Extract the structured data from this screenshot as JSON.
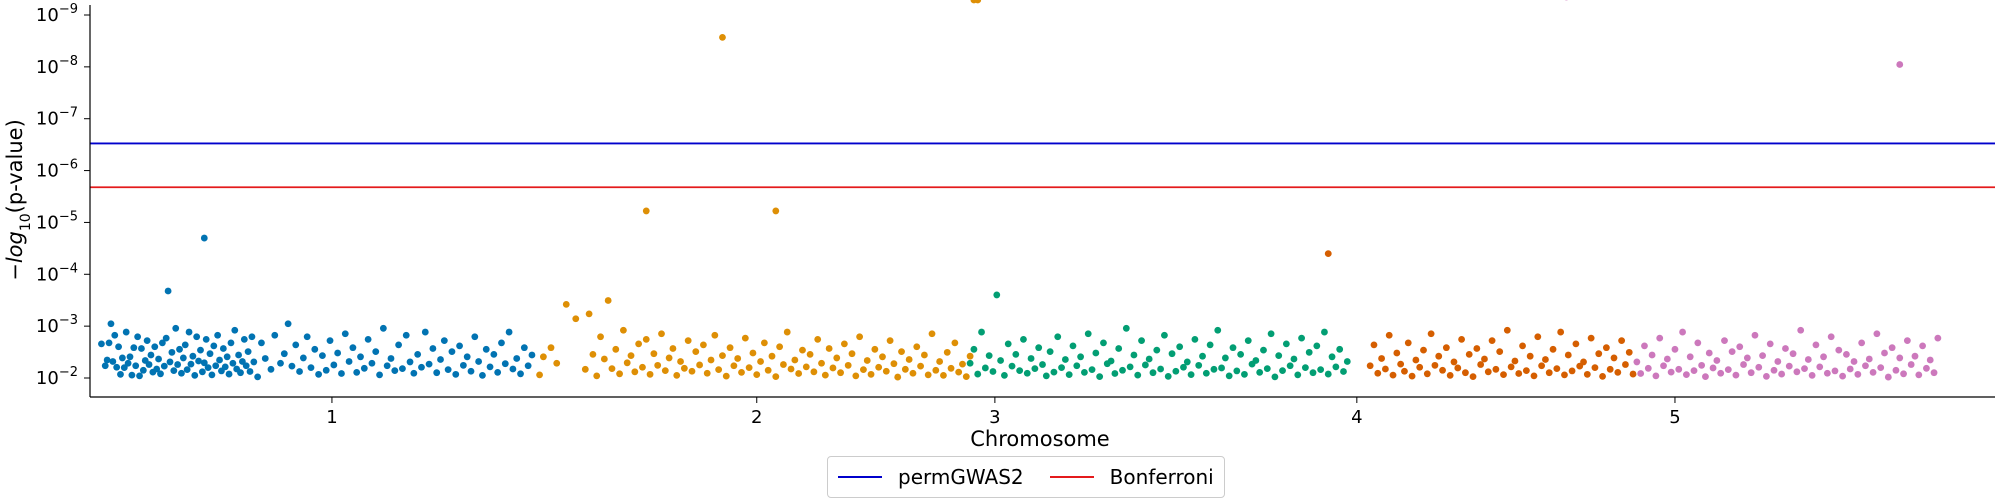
{
  "chart_data": {
    "type": "scatter",
    "xlabel": "Chromosome",
    "ylabel": "−log10(p-value)",
    "xticks": [
      "1",
      "2",
      "3",
      "4",
      "5"
    ],
    "yscale": "log",
    "ytick_labels": [
      {
        "base": "10",
        "exp": "−9",
        "value": 1e-09
      },
      {
        "base": "10",
        "exp": "−8",
        "value": 1e-08
      },
      {
        "base": "10",
        "exp": "−7",
        "value": 1e-07
      },
      {
        "base": "10",
        "exp": "−6",
        "value": 1e-06
      },
      {
        "base": "10",
        "exp": "−5",
        "value": 1e-05
      },
      {
        "base": "10",
        "exp": "−4",
        "value": 0.0001
      },
      {
        "base": "10",
        "exp": "−3",
        "value": 0.001
      },
      {
        "base": "10",
        "exp": "−2",
        "value": 0.01
      }
    ],
    "thresholds": [
      {
        "name": "permGWAS2",
        "value": 3e-07,
        "color": "#0000cc"
      },
      {
        "name": "Bonferroni",
        "value": 2.1e-06,
        "color": "#e41a1c"
      }
    ],
    "legend": {
      "placement": "below",
      "entries": [
        "permGWAS2",
        "Bonferroni"
      ]
    },
    "series": [
      {
        "chromosome": "1",
        "color": "#0173b2",
        "x": [
          0.06,
          0.08,
          0.09,
          0.1,
          0.11,
          0.12,
          0.13,
          0.14,
          0.15,
          0.16,
          0.17,
          0.18,
          0.19,
          0.2,
          0.21,
          0.22,
          0.23,
          0.24,
          0.25,
          0.26,
          0.27,
          0.28,
          0.29,
          0.3,
          0.31,
          0.32,
          0.33,
          0.34,
          0.35,
          0.36,
          0.37,
          0.38,
          0.39,
          0.4,
          0.41,
          0.42,
          0.43,
          0.44,
          0.45,
          0.46,
          0.47,
          0.48,
          0.49,
          0.5,
          0.51,
          0.52,
          0.53,
          0.54,
          0.55,
          0.56,
          0.57,
          0.58,
          0.59,
          0.6,
          0.61,
          0.62,
          0.63,
          0.64,
          0.65,
          0.66,
          0.67,
          0.68,
          0.69,
          0.7,
          0.71,
          0.72,
          0.73,
          0.74,
          0.75,
          0.76,
          0.77,
          0.78,
          0.79,
          0.8,
          0.81,
          0.82,
          0.83,
          0.84,
          0.85,
          0.86,
          0.88,
          0.9,
          0.92,
          0.95,
          0.97,
          1.0,
          1.02,
          1.04,
          1.06,
          1.08,
          1.1,
          1.12,
          1.14,
          1.16,
          1.18,
          1.2,
          1.22,
          1.24,
          1.26,
          1.28,
          1.3,
          1.32,
          1.34,
          1.36,
          1.38,
          1.4,
          1.42,
          1.44,
          1.46,
          1.48,
          1.5,
          1.52,
          1.54,
          1.56,
          1.58,
          1.6,
          1.62,
          1.64,
          1.66,
          1.68,
          1.7,
          1.72,
          1.74,
          1.76,
          1.78,
          1.8,
          1.82,
          1.84,
          1.86,
          1.88,
          1.9,
          1.92,
          1.94,
          1.96,
          1.98,
          2.0,
          2.02,
          2.04,
          2.06,
          2.08,
          2.1,
          2.12,
          2.14,
          2.16,
          2.18,
          2.2,
          2.22,
          2.24,
          2.26,
          2.28,
          2.3,
          2.32
        ],
        "p": [
          0.0022,
          0.0058,
          0.0045,
          0.0021,
          0.0009,
          0.0048,
          0.0015,
          0.0062,
          0.0025,
          0.0085,
          0.0041,
          0.0063,
          0.0013,
          0.0052,
          0.0039,
          0.0088,
          0.0026,
          0.0058,
          0.0016,
          0.0091,
          0.0027,
          0.0071,
          0.0046,
          0.0019,
          0.0055,
          0.0036,
          0.0077,
          0.0025,
          0.0067,
          0.0043,
          0.0083,
          0.0021,
          0.0059,
          0.0017,
          0.00021,
          0.0049,
          0.0032,
          0.0072,
          0.0011,
          0.0055,
          0.0028,
          0.0081,
          0.0041,
          0.0023,
          0.0069,
          0.0013,
          0.0054,
          0.0038,
          0.0089,
          0.0016,
          0.0047,
          0.0029,
          0.0076,
          0.0051,
          0.0018,
          0.0063,
          0.0034,
          0.0087,
          0.0024,
          0.0058,
          0.0015,
          0.0045,
          0.0073,
          0.0027,
          0.0061,
          0.0039,
          0.0084,
          0.0021,
          0.0052,
          0.0012,
          0.0067,
          0.0036,
          0.0079,
          0.0048,
          0.0018,
          0.0058,
          0.0031,
          0.0075,
          0.0016,
          0.0049,
          0.0095,
          0.0021,
          0.0042,
          0.0068,
          0.0015,
          0.0052,
          0.0034,
          0.0009,
          0.0059,
          0.0023,
          0.0075,
          0.0041,
          0.0016,
          0.0063,
          0.0028,
          0.0085,
          0.0037,
          0.0071,
          0.0019,
          0.0056,
          0.0033,
          0.0082,
          0.0014,
          0.0048,
          0.0026,
          0.0078,
          0.0039,
          0.0065,
          0.0018,
          0.0052,
          0.0031,
          0.0087,
          0.0011,
          0.0058,
          0.0042,
          0.0072,
          0.0023,
          0.0066,
          0.0015,
          0.0049,
          0.0081,
          0.0035,
          0.0062,
          0.0013,
          0.0054,
          0.0027,
          0.0079,
          0.0044,
          0.0019,
          0.0069,
          0.0031,
          0.0085,
          0.0024,
          0.0057,
          0.0039,
          0.0074,
          0.0016,
          0.0048,
          0.0089,
          0.0028,
          0.0061,
          0.0035,
          0.0078,
          0.0021,
          0.0053,
          0.0013,
          0.0067,
          0.0042,
          0.0083,
          0.0026,
          0.0058,
          0.0036
        ]
      },
      {
        "chromosome": "2",
        "color": "#de8f05",
        "x": [
          2.36,
          2.38,
          2.42,
          2.45,
          2.5,
          2.55,
          2.6,
          2.62,
          2.64,
          2.66,
          2.68,
          2.7,
          2.72,
          2.74,
          2.76,
          2.78,
          2.8,
          2.82,
          2.84,
          2.86,
          2.88,
          2.9,
          2.92,
          2.94,
          2.96,
          2.98,
          3.0,
          3.02,
          3.04,
          3.06,
          3.08,
          3.1,
          3.12,
          3.14,
          3.16,
          3.18,
          3.2,
          3.22,
          3.24,
          3.26,
          3.28,
          3.3,
          3.32,
          3.34,
          3.36,
          3.38,
          3.4,
          3.42,
          3.44,
          3.46,
          3.48,
          3.5,
          3.52,
          3.54,
          3.56,
          3.58,
          3.6,
          3.62,
          3.64,
          3.66,
          3.68,
          3.7,
          3.72,
          3.74,
          3.76,
          3.78,
          3.8,
          3.82,
          3.84,
          3.86,
          3.88,
          3.9,
          3.92,
          3.94,
          3.96,
          3.98,
          4.0,
          4.02,
          4.04,
          4.06,
          4.08,
          4.1,
          4.12,
          4.14,
          4.16,
          4.18,
          4.2,
          4.22,
          4.24,
          4.26,
          4.28,
          4.3,
          4.32,
          4.34,
          4.36,
          4.38,
          4.4,
          4.42,
          4.44,
          4.46,
          4.48,
          4.5,
          4.52,
          4.54,
          4.56,
          4.58,
          4.6,
          4.62,
          4.64,
          4.66
        ],
        "p": [
          0.0087,
          0.0039,
          0.0026,
          0.0052,
          0.00038,
          0.00072,
          0.0068,
          0.00058,
          0.0035,
          0.0091,
          0.0016,
          0.0043,
          0.00032,
          0.0066,
          0.0028,
          0.0083,
          0.0012,
          0.0051,
          0.0037,
          0.0076,
          0.0022,
          0.0062,
          0.0018,
          0.0085,
          0.0034,
          0.0057,
          0.0014,
          0.0072,
          0.0041,
          0.0027,
          0.0089,
          0.0048,
          0.0065,
          0.0019,
          0.0074,
          0.0031,
          0.0056,
          0.0023,
          0.0081,
          0.0045,
          0.0015,
          0.0069,
          0.0037,
          0.0092,
          0.0026,
          0.0058,
          0.0042,
          0.0078,
          0.0017,
          0.0063,
          0.0033,
          0.0086,
          0.0048,
          0.0021,
          0.0071,
          0.0038,
          0.0094,
          0.0025,
          0.0055,
          0.0013,
          0.0067,
          0.0045,
          0.0082,
          0.0029,
          0.0061,
          0.0035,
          0.0076,
          0.0018,
          0.0052,
          0.0088,
          0.0027,
          0.0064,
          0.0041,
          0.0079,
          0.0022,
          0.0057,
          0.0034,
          0.0091,
          0.0016,
          0.0069,
          0.0046,
          0.0085,
          0.0028,
          0.0062,
          0.0039,
          0.0074,
          0.0019,
          0.0053,
          0.0096,
          0.0031,
          0.0068,
          0.0044,
          0.0081,
          0.0025,
          0.0059,
          0.0036,
          0.0087,
          0.0014,
          0.0071,
          0.0048,
          0.0089,
          0.0032,
          0.0065,
          0.0021,
          0.0077,
          0.0054,
          0.0094,
          0.0038
        ]
      },
      {
        "chromosome": "3",
        "color": "#029e73",
        "x": [
          4.62,
          4.64,
          4.66,
          4.68,
          4.7,
          4.72,
          4.74,
          4.76,
          4.78,
          4.8,
          4.82,
          4.84,
          4.86,
          4.88,
          4.9,
          4.92,
          4.94,
          4.96,
          4.98,
          5.0,
          5.02,
          5.04,
          5.06,
          5.08,
          5.1,
          5.12,
          5.14,
          5.16,
          5.18,
          5.2,
          5.22,
          5.24,
          5.26,
          5.28,
          5.3,
          5.32,
          5.34,
          5.36,
          5.38,
          5.4,
          5.42,
          5.44,
          5.46,
          5.48,
          5.5,
          5.52,
          5.54,
          5.56,
          5.58,
          5.6,
          5.62,
          5.64,
          5.66,
          5.68,
          5.7,
          5.72,
          5.74,
          5.76,
          5.78,
          5.8,
          5.82,
          5.84,
          5.86,
          5.88,
          5.9,
          5.92,
          5.94,
          5.96,
          5.98,
          6.0,
          6.02,
          6.04,
          6.06,
          6.08,
          6.1,
          6.12,
          6.14,
          6.16,
          6.18,
          6.2,
          6.22,
          6.24,
          6.26,
          6.28,
          6.3,
          6.32,
          6.34,
          6.36,
          6.38,
          6.4,
          6.42,
          6.44,
          6.46,
          6.48,
          6.5,
          6.52,
          6.54,
          6.56,
          6.58,
          6.6
        ],
        "p": [
          0.0052,
          0.0028,
          0.0084,
          0.0013,
          0.0064,
          0.0037,
          0.0075,
          0.00025,
          0.0046,
          0.0089,
          0.0022,
          0.0059,
          0.0035,
          0.0072,
          0.0018,
          0.0081,
          0.0042,
          0.0066,
          0.0026,
          0.0055,
          0.0091,
          0.0031,
          0.0077,
          0.0016,
          0.0063,
          0.0044,
          0.0086,
          0.0024,
          0.0058,
          0.0039,
          0.0078,
          0.0014,
          0.0069,
          0.0033,
          0.0094,
          0.0021,
          0.0053,
          0.0047,
          0.0082,
          0.0027,
          0.0071,
          0.0011,
          0.0061,
          0.0036,
          0.0088,
          0.0019,
          0.0056,
          0.0043,
          0.0079,
          0.0029,
          0.0067,
          0.0015,
          0.0093,
          0.0034,
          0.0074,
          0.0025,
          0.0062,
          0.0049,
          0.0086,
          0.0018,
          0.0057,
          0.0038,
          0.0081,
          0.0023,
          0.0068,
          0.0012,
          0.0064,
          0.0041,
          0.0091,
          0.0026,
          0.0073,
          0.0035,
          0.0085,
          0.0019,
          0.0054,
          0.0046,
          0.0078,
          0.0029,
          0.0066,
          0.0014,
          0.0095,
          0.0037,
          0.0072,
          0.0022,
          0.0058,
          0.0043,
          0.0087,
          0.0017,
          0.0063,
          0.0032,
          0.0079,
          0.0024,
          0.0069,
          0.0013,
          0.0084,
          0.0039,
          0.0061,
          0.0028,
          0.0075,
          0.0048
        ]
      },
      {
        "chromosome": "4",
        "color": "#d55e00",
        "x": [
          6.72,
          6.74,
          6.76,
          6.78,
          6.8,
          6.82,
          6.84,
          6.86,
          6.88,
          6.9,
          6.92,
          6.94,
          6.96,
          6.98,
          7.0,
          7.02,
          7.04,
          7.06,
          7.08,
          7.1,
          7.12,
          7.14,
          7.16,
          7.18,
          7.2,
          7.22,
          7.24,
          7.26,
          7.28,
          7.3,
          7.32,
          7.34,
          7.36,
          7.38,
          7.4,
          7.42,
          7.44,
          7.46,
          7.48,
          7.5,
          7.52,
          7.54,
          7.56,
          7.58,
          7.6,
          7.62,
          7.64,
          7.66,
          7.68,
          7.7,
          7.72,
          7.74,
          7.76,
          7.78,
          7.8,
          7.82,
          7.84,
          7.86,
          7.88,
          7.9,
          7.92,
          7.94,
          7.96,
          7.98,
          8.0,
          8.02,
          8.04,
          8.06,
          8.08,
          8.1
        ],
        "p": [
          0.0058,
          0.0023,
          0.0081,
          0.0042,
          0.0067,
          0.0015,
          0.0088,
          0.0033,
          0.0054,
          0.0074,
          0.0021,
          0.0092,
          0.0045,
          0.0062,
          0.0029,
          0.0083,
          0.0014,
          0.0057,
          0.0038,
          0.0071,
          0.0026,
          0.0089,
          0.0049,
          0.0064,
          0.0018,
          0.0079,
          0.0035,
          0.0094,
          0.0027,
          0.0055,
          0.0043,
          0.0076,
          0.0019,
          0.0068,
          0.0031,
          0.0086,
          0.0012,
          0.0061,
          0.0047,
          0.0082,
          0.0024,
          0.0072,
          0.0038,
          0.0091,
          0.0016,
          0.0058,
          0.0044,
          0.0079,
          0.0028,
          0.0066,
          0.0013,
          0.0087,
          0.0036,
          0.0073,
          0.0022,
          0.0059,
          0.0049,
          0.0085,
          0.0017,
          0.0063,
          0.0034,
          0.0093,
          0.0026,
          0.0068,
          0.0041,
          0.0078,
          0.0019,
          0.0055,
          0.0032,
          0.0084
        ]
      },
      {
        "chromosome": "5",
        "color": "#cc78bc",
        "x": [
          8.12,
          8.14,
          8.16,
          8.18,
          8.2,
          8.22,
          8.24,
          8.26,
          8.28,
          8.3,
          8.32,
          8.34,
          8.36,
          8.38,
          8.4,
          8.42,
          8.44,
          8.46,
          8.48,
          8.5,
          8.52,
          8.54,
          8.56,
          8.58,
          8.6,
          8.62,
          8.64,
          8.66,
          8.68,
          8.7,
          8.72,
          8.74,
          8.76,
          8.78,
          8.8,
          8.82,
          8.84,
          8.86,
          8.88,
          8.9,
          8.92,
          8.94,
          8.96,
          8.98,
          9.0,
          9.02,
          9.04,
          9.06,
          9.08,
          9.1,
          9.12,
          9.14,
          9.16,
          9.18,
          9.2,
          9.22,
          9.24,
          9.26,
          9.28,
          9.3,
          9.32,
          9.34,
          9.36,
          9.38,
          9.4,
          9.42,
          9.44,
          9.46,
          9.48,
          9.5,
          9.52,
          9.54,
          9.56,
          9.58,
          9.6,
          9.62,
          9.64,
          9.66,
          9.68,
          9.7
        ],
        "p": [
          0.0049,
          0.0082,
          0.0024,
          0.0065,
          0.0036,
          0.0091,
          0.0017,
          0.0058,
          0.0043,
          0.0077,
          0.0028,
          0.0068,
          0.0013,
          0.0086,
          0.0039,
          0.0072,
          0.0021,
          0.0057,
          0.0094,
          0.0033,
          0.0064,
          0.0046,
          0.0081,
          0.0019,
          0.0069,
          0.0031,
          0.0088,
          0.0025,
          0.0055,
          0.0041,
          0.0079,
          0.0015,
          0.0062,
          0.0037,
          0.0093,
          0.0022,
          0.0071,
          0.0048,
          0.0084,
          0.0027,
          0.0059,
          0.0034,
          0.0076,
          0.0012,
          0.0066,
          0.0044,
          0.0089,
          0.0023,
          0.0061,
          0.0039,
          0.0081,
          0.0016,
          0.0073,
          0.0029,
          0.0092,
          0.0035,
          0.0067,
          0.0048,
          0.0085,
          0.0021,
          0.0058,
          0.0043,
          0.0078,
          0.0014,
          0.0063,
          0.0033,
          0.0096,
          0.0026,
          0.0071,
          0.0041,
          0.0083,
          0.0019,
          0.0055,
          0.0038,
          0.0087,
          0.0024,
          0.0065,
          0.0045,
          0.0079,
          0.0017
        ]
      }
    ]
  }
}
